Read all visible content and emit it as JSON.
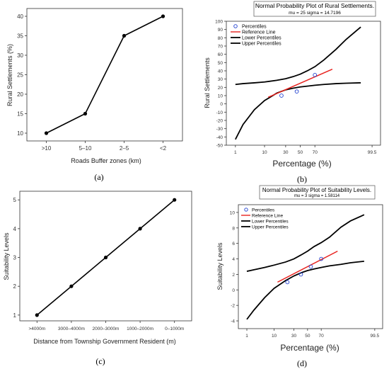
{
  "colors": {
    "line": "#000000",
    "reference": "#e8231f",
    "marker_outline": "#1f3fd0",
    "band": "#000000"
  },
  "chart_data": [
    {
      "type": "line",
      "panel_label": "(a)",
      "categories": [
        ">10",
        "5–10",
        "2–5",
        "<2"
      ],
      "values": [
        10,
        15,
        35,
        40
      ],
      "yticks": [
        10,
        15,
        20,
        25,
        30,
        35,
        40
      ],
      "ylim": [
        8,
        42
      ],
      "xlabel": "Roads Buffer zones (km)",
      "ylabel": "Rural Settlements (%)",
      "grid": false
    },
    {
      "type": "scatter",
      "panel_label": "(b)",
      "title": "Normal Probability Plot of Rural Settlements.",
      "subtitle": "mu = 25  sigma = 14.7196",
      "xlabel": "Percentage (%)",
      "ylabel": "Rural Settlements",
      "xscale": "probability",
      "xticks": [
        1,
        10,
        30,
        50,
        70,
        99.5
      ],
      "yticks": [
        -50,
        -40,
        -30,
        -20,
        -10,
        0,
        10,
        20,
        30,
        40,
        50,
        60,
        70,
        80,
        90,
        100
      ],
      "ylim": [
        -50,
        100
      ],
      "legend": [
        "Percentiles",
        "Reference Line",
        "Lower Percentiles",
        "Upper Percentiles"
      ],
      "legend_position": "top-left",
      "series": [
        {
          "name": "Percentiles",
          "x": [
            25,
            45,
            70
          ],
          "y": [
            10,
            15,
            35
          ]
        },
        {
          "name": "Reference Line",
          "x": [
            12.5,
            87.5
          ],
          "y": [
            8,
            42
          ]
        },
        {
          "name": "Lower Percentiles",
          "x": [
            1,
            2,
            5,
            10,
            20,
            30,
            40,
            50,
            60,
            70,
            80,
            90,
            95,
            98.5
          ],
          "y": [
            -43,
            -25,
            -7,
            4,
            13,
            17,
            19,
            20.5,
            21.5,
            22.5,
            23.5,
            24.5,
            25,
            25.5
          ]
        },
        {
          "name": "Upper Percentiles",
          "x": [
            1,
            2,
            5,
            10,
            20,
            30,
            40,
            50,
            60,
            70,
            80,
            90,
            95,
            98.5
          ],
          "y": [
            23.5,
            24.5,
            25.5,
            26.5,
            28.5,
            30.5,
            33,
            36,
            40,
            45,
            53,
            66,
            78,
            93
          ]
        }
      ]
    },
    {
      "type": "line",
      "panel_label": "(c)",
      "categories": [
        ">4000m",
        "3000–4000m",
        "2000–3000m",
        "1000–2000m",
        "0–1000m"
      ],
      "values": [
        1,
        2,
        3,
        4,
        5
      ],
      "yticks": [
        1,
        2,
        3,
        4,
        5
      ],
      "ylim": [
        0.8,
        5.3
      ],
      "xlabel": "Distance from Township Government Resident (m)",
      "ylabel": "Suitability Levels",
      "grid": false
    },
    {
      "type": "scatter",
      "panel_label": "(d)",
      "title": "Normal Probability Plot of Suitability Levels.",
      "subtitle": "mu = 3  sigma = 1.58114",
      "xlabel": "Percentage (%)",
      "ylabel": "Suitability Levels",
      "xscale": "probability",
      "xticks": [
        1,
        10,
        30,
        50,
        70,
        99.5
      ],
      "yticks": [
        -4,
        -2,
        0,
        2,
        4,
        6,
        8,
        10
      ],
      "ylim": [
        -5,
        11
      ],
      "legend": [
        "Percentiles",
        "Reference Line",
        "Lower Percentiles",
        "Upper Percentiles"
      ],
      "legend_position": "top-left",
      "series": [
        {
          "name": "Percentiles",
          "x": [
            22,
            40,
            55,
            70
          ],
          "y": [
            1,
            2,
            3,
            4
          ]
        },
        {
          "name": "Reference Line",
          "x": [
            12.5,
            87.5
          ],
          "y": [
            1,
            5
          ]
        },
        {
          "name": "Lower Percentiles",
          "x": [
            1,
            2,
            5,
            10,
            20,
            30,
            40,
            50,
            60,
            70,
            80,
            90,
            95,
            98.5
          ],
          "y": [
            -3.8,
            -2.6,
            -1.0,
            0.2,
            1.2,
            1.8,
            2.2,
            2.5,
            2.7,
            2.9,
            3.1,
            3.3,
            3.5,
            3.7
          ]
        },
        {
          "name": "Upper Percentiles",
          "x": [
            1,
            2,
            5,
            10,
            20,
            30,
            40,
            50,
            60,
            70,
            80,
            90,
            95,
            98.5
          ],
          "y": [
            2.4,
            2.6,
            2.9,
            3.2,
            3.6,
            4.0,
            4.5,
            5.0,
            5.6,
            6.1,
            6.8,
            8.1,
            8.9,
            9.7
          ]
        }
      ]
    }
  ]
}
